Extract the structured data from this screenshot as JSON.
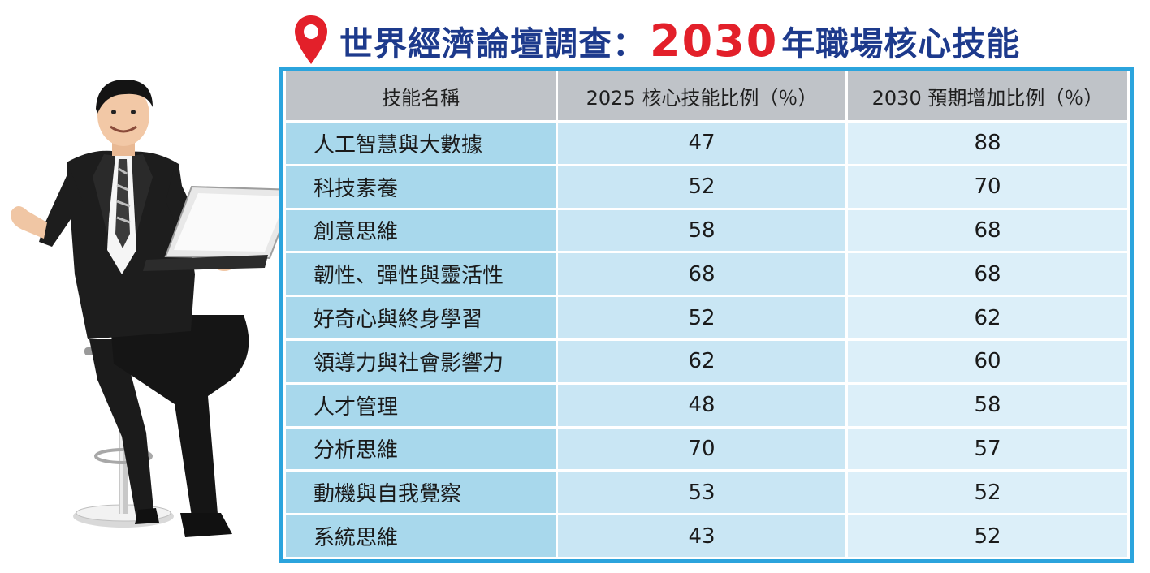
{
  "title": {
    "prefix": "世界經濟論壇調查：",
    "year": "2030",
    "suffix": "年職場核心技能"
  },
  "icons": {
    "pin": "location-pin-icon",
    "person": "businessman-with-laptop-illustration"
  },
  "colors": {
    "title_blue": "#1d3a8c",
    "title_red": "#e3202a",
    "frame_blue": "#2ba4dd",
    "header_gray": "#bfc3c8",
    "name_cell": "#a8d8ec",
    "value_cell": "#c9e6f4"
  },
  "chart_data": {
    "type": "table",
    "columns": [
      "技能名稱",
      "2025 核心技能比例（％）",
      "2030 預期增加比例（％）"
    ],
    "rows": [
      {
        "skill": "人工智慧與大數據",
        "v2025": "47",
        "v2030": "88"
      },
      {
        "skill": "科技素養",
        "v2025": "52",
        "v2030": "70"
      },
      {
        "skill": "創意思維",
        "v2025": "58",
        "v2030": "68"
      },
      {
        "skill": "韌性、彈性與靈活性",
        "v2025": "68",
        "v2030": "68"
      },
      {
        "skill": "好奇心與終身學習",
        "v2025": "52",
        "v2030": "62"
      },
      {
        "skill": "領導力與社會影響力",
        "v2025": "62",
        "v2030": "60"
      },
      {
        "skill": "人才管理",
        "v2025": "48",
        "v2030": "58"
      },
      {
        "skill": "分析思維",
        "v2025": "70",
        "v2030": "57"
      },
      {
        "skill": "動機與自我覺察",
        "v2025": "53",
        "v2030": "52"
      },
      {
        "skill": "系統思維",
        "v2025": "43",
        "v2030": "52"
      }
    ]
  }
}
